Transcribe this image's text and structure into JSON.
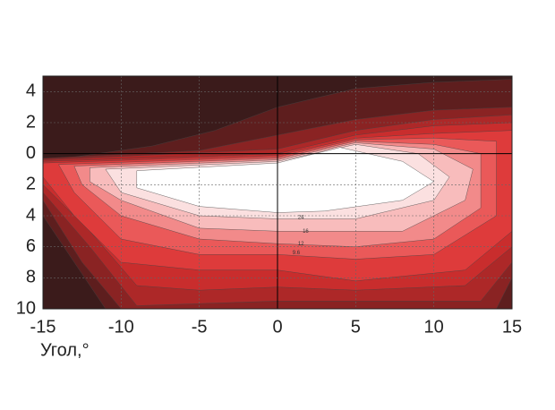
{
  "chart_data": {
    "type": "contour",
    "xlabel": "Угол,°",
    "xlim": [
      -15,
      15
    ],
    "ylim": [
      -10,
      5
    ],
    "xticks": [
      -15,
      -10,
      -5,
      0,
      5,
      10,
      15
    ],
    "yticks": [
      4,
      2,
      0,
      {
        "value": -2,
        "label": "2"
      },
      {
        "value": -4,
        "label": "4"
      },
      {
        "value": -6,
        "label": "6"
      },
      {
        "value": -8,
        "label": "8"
      },
      {
        "value": -10,
        "label": "10"
      }
    ],
    "grid": true,
    "background": "#3b1b1b",
    "regions": [
      {
        "color": "#5e1e1e",
        "x": [
          -15,
          -8,
          -4,
          0,
          5,
          10,
          15,
          15,
          -11,
          -13,
          -15
        ],
        "y": [
          -0.5,
          0.5,
          1.5,
          3,
          4.2,
          4.6,
          4.8,
          -10,
          -10,
          -7,
          -4
        ]
      },
      {
        "color": "#8a2323",
        "x": [
          -15,
          -5,
          0,
          5,
          10,
          15,
          15,
          14,
          -10,
          -12.5,
          -15
        ],
        "y": [
          -0.3,
          0.2,
          1.2,
          2.2,
          2.8,
          3,
          -8,
          -10,
          -10,
          -7,
          -3
        ]
      },
      {
        "color": "#ad2828",
        "x": [
          -15,
          0,
          5,
          10,
          15,
          15,
          13,
          0,
          -9,
          -12,
          -15
        ],
        "y": [
          -0.4,
          0.3,
          1.5,
          2.2,
          2.5,
          -7,
          -9.5,
          -9.5,
          -9.8,
          -6,
          -2.5
        ]
      },
      {
        "color": "#c92d2d",
        "x": [
          -15,
          0,
          5,
          10,
          15,
          15,
          12,
          5,
          0,
          -5,
          -9,
          -12,
          -15
        ],
        "y": [
          -0.5,
          0,
          1.2,
          1.8,
          2,
          -6,
          -8.5,
          -8.8,
          -8.6,
          -8.8,
          -8.5,
          -5,
          -2
        ]
      },
      {
        "color": "#de3b3b",
        "x": [
          -15,
          0,
          5,
          10,
          15,
          15,
          12,
          5,
          0,
          -5,
          -10,
          -13,
          -15
        ],
        "y": [
          -0.6,
          -0.1,
          1,
          1.3,
          1.5,
          -5,
          -7.5,
          -8.2,
          -7.5,
          -7.5,
          -7,
          -4,
          -1.5
        ]
      },
      {
        "color": "#ea5959",
        "x": [
          -14,
          0,
          5,
          10,
          14,
          14,
          10,
          5,
          0,
          -5,
          -10,
          -13
        ],
        "y": [
          -0.7,
          -0.2,
          0.9,
          1,
          0.8,
          -4,
          -6.5,
          -6.8,
          -6.5,
          -6.5,
          -5.5,
          -2.5
        ]
      },
      {
        "color": "#f28a8a",
        "x": [
          -13,
          0,
          5,
          10,
          13,
          13,
          10,
          5,
          0,
          -5,
          -10,
          -12.5
        ],
        "y": [
          -0.8,
          -0.3,
          0.8,
          0.6,
          0,
          -3.5,
          -5.5,
          -6,
          -5.8,
          -5.5,
          -4,
          -2
        ]
      },
      {
        "color": "#f8bcbc",
        "x": [
          -12,
          0,
          5,
          10,
          12.5,
          12,
          8,
          0,
          -5,
          -10,
          -12
        ],
        "y": [
          -0.9,
          -0.4,
          0.7,
          0.3,
          -1,
          -3,
          -5,
          -5,
          -4.8,
          -3,
          -1.8
        ]
      },
      {
        "color": "#fbe0e0",
        "x": [
          -11,
          0,
          5,
          9,
          11,
          10,
          5,
          0,
          -5,
          -10
        ],
        "y": [
          -1,
          -0.5,
          0.6,
          0,
          -1.5,
          -3,
          -4.2,
          -4.2,
          -4,
          -2.5
        ]
      },
      {
        "color": "#ffffff",
        "x": [
          -9,
          0,
          4,
          8,
          10,
          8,
          3,
          0,
          -5,
          -9
        ],
        "y": [
          -1.1,
          -0.6,
          0.4,
          -0.5,
          -1.8,
          -3,
          -3.7,
          -3.8,
          -3.4,
          -2.2
        ]
      }
    ],
    "contour_labels": [
      {
        "value": 24,
        "x": 1.5,
        "y": -4.1
      },
      {
        "value": 16,
        "x": 1.8,
        "y": -5
      },
      {
        "value": 12,
        "x": 1.5,
        "y": -5.8
      },
      {
        "value": 9.6,
        "x": 1.2,
        "y": -6.4
      }
    ]
  }
}
